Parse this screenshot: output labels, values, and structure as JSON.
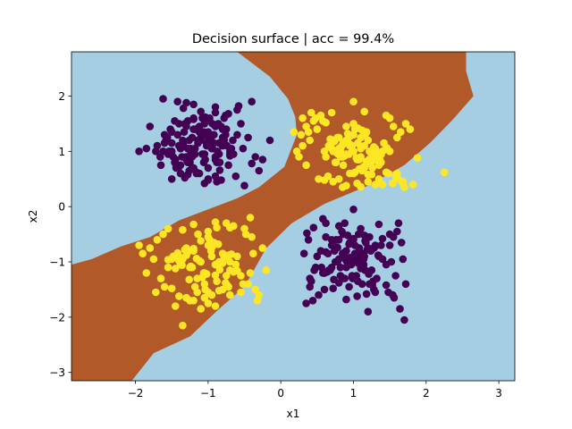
{
  "chart_data": {
    "type": "scatter",
    "title": "Decision surface | acc = 99.4%",
    "xlabel": "x1",
    "ylabel": "x2",
    "xlim": [
      -2.88,
      3.22
    ],
    "ylim": [
      -3.15,
      2.8
    ],
    "x_ticks": [
      -2,
      -1,
      0,
      1,
      2,
      3
    ],
    "y_ticks": [
      -3,
      -2,
      -1,
      0,
      1,
      2
    ],
    "grid": false,
    "legend": "none",
    "region_colors": {
      "class_0": "#a6cee3",
      "class_1": "#b15928"
    },
    "point_colors": {
      "class_0": "#440154",
      "class_1": "#fde725"
    },
    "decision_region_class_1": [
      [
        -2.88,
        -1.05
      ],
      [
        -2.6,
        -0.95
      ],
      [
        -2.2,
        -0.72
      ],
      [
        -1.8,
        -0.55
      ],
      [
        -1.4,
        -0.25
      ],
      [
        -1.0,
        -0.05
      ],
      [
        -0.6,
        0.15
      ],
      [
        -0.3,
        0.35
      ],
      [
        0.05,
        0.72
      ],
      [
        0.22,
        1.3
      ],
      [
        0.2,
        1.62
      ],
      [
        0.1,
        1.95
      ],
      [
        -0.15,
        2.35
      ],
      [
        -0.6,
        2.8
      ],
      [
        2.55,
        2.8
      ],
      [
        2.55,
        2.45
      ],
      [
        2.65,
        2.0
      ],
      [
        2.35,
        1.55
      ],
      [
        2.05,
        1.15
      ],
      [
        1.7,
        0.75
      ],
      [
        1.2,
        0.38
      ],
      [
        0.6,
        0.05
      ],
      [
        0.15,
        -0.3
      ],
      [
        -0.2,
        -0.75
      ],
      [
        -0.5,
        -1.45
      ],
      [
        -0.85,
        -1.85
      ],
      [
        -1.25,
        -2.35
      ],
      [
        -1.75,
        -2.65
      ],
      [
        -2.05,
        -3.15
      ],
      [
        -2.88,
        -3.15
      ]
    ],
    "series": [
      {
        "class": 0,
        "x": [
          -1.35,
          -1.12,
          -0.95,
          -0.8,
          -1.55,
          -1.25,
          -1.05,
          -0.7,
          -1.42,
          -1.18,
          -0.9,
          -1.6,
          -1.3,
          -1.0,
          -0.75,
          -1.45,
          -1.2,
          -0.98,
          -0.85,
          -1.38,
          -1.1,
          -0.6,
          -1.65,
          -1.28,
          -0.92,
          -1.5,
          -1.15,
          -0.88,
          -1.22,
          -1.02,
          -0.68,
          -1.48,
          -1.33,
          -1.08,
          -0.82,
          -1.58,
          -1.26,
          -0.96,
          -0.72,
          -1.4,
          -1.14,
          -0.9,
          -1.62,
          -1.36,
          -1.05,
          -0.78,
          -1.52,
          -1.2,
          -0.95,
          -1.3,
          -1.1,
          -0.85,
          -1.44,
          -1.24,
          -1.0,
          -0.65,
          -1.7,
          -1.32,
          -1.06,
          -0.8,
          -1.16,
          -0.92,
          -1.56,
          -1.28,
          -1.04,
          -0.74,
          -1.46,
          -1.22,
          -0.98,
          -1.38,
          -1.12,
          -0.87,
          -1.66,
          -1.34,
          -1.0,
          -0.76,
          -1.5,
          -1.18,
          -0.94,
          -1.26,
          -1.08,
          -0.84,
          -1.4,
          -1.2,
          -0.96,
          -1.54,
          -1.3,
          -1.02,
          -0.7,
          -1.6,
          -1.24,
          -0.9,
          -1.44,
          -1.14,
          -0.8,
          -1.36,
          -1.06,
          -0.86,
          -1.5,
          -1.28,
          -0.66,
          -1.8,
          -0.52,
          -0.35,
          -0.15,
          -1.72,
          -0.4,
          -0.3,
          -1.85,
          -0.55,
          -1.5,
          -0.9,
          -1.2,
          -0.6,
          -0.45,
          -1.95,
          -0.25,
          -0.5,
          -1.05,
          -0.78,
          -1.38,
          -0.58,
          -0.4,
          -1.62,
          -0.9,
          -1.1,
          -0.62,
          -1.3,
          -1.0,
          -0.72,
          -1.42,
          -1.16,
          -0.88,
          -1.28,
          -1.04,
          -0.82,
          -1.34,
          -1.12,
          -0.94,
          -1.22,
          -0.98,
          -0.76,
          -1.46,
          -1.18,
          -0.9,
          -1.32,
          -1.08,
          -0.84,
          -1.4,
          -1.2,
          -1.0,
          -0.7,
          0.85,
          1.05,
          1.2,
          0.7,
          0.95,
          1.15,
          0.6,
          0.9,
          1.1,
          1.3,
          0.8,
          1.0,
          1.25,
          0.65,
          0.88,
          1.08,
          1.35,
          0.75,
          0.98,
          1.18,
          0.55,
          0.82,
          1.02,
          1.22,
          1.4,
          0.7,
          0.92,
          1.12,
          0.6,
          0.86,
          1.06,
          1.28,
          0.78,
          0.96,
          1.16,
          0.5,
          0.84,
          1.04,
          1.24,
          1.45,
          0.72,
          0.94,
          1.14,
          0.62,
          0.9,
          1.1,
          1.32,
          0.8,
          1.0,
          1.2,
          0.58,
          0.87,
          1.07,
          1.27,
          0.74,
          0.97,
          1.17,
          0.66,
          0.92,
          1.12,
          1.38,
          0.82,
          1.02,
          1.22,
          0.56,
          0.88,
          1.08,
          0.76,
          0.99,
          1.19,
          0.68,
          0.94,
          1.14,
          1.34,
          0.8,
          1.0,
          1.21,
          0.62,
          0.9,
          1.1,
          1.3,
          0.73,
          0.96,
          1.16,
          0.64,
          0.86,
          1.06,
          1.26,
          0.78,
          1.0,
          0.45,
          0.38,
          0.32,
          0.48,
          0.42,
          0.52,
          0.4,
          1.55,
          1.62,
          1.5,
          1.68,
          1.58,
          1.48,
          1.72,
          1.6,
          1.52,
          1.66,
          0.35,
          0.4,
          0.46,
          0.36,
          0.44,
          1.56,
          1.64,
          1.5,
          1.7,
          1.54,
          0.85,
          0.6,
          1.3,
          0.8,
          1.1,
          1.35,
          0.72,
          1.05,
          0.92,
          1.45,
          0.7,
          0.98,
          0.62,
          1.2,
          0.58,
          0.88,
          0.9,
          1.28,
          1.15,
          1.4,
          1.0,
          1.18,
          1.0
        ],
        "y": [
          1.2,
          1.35,
          1.1,
          1.25,
          0.95,
          0.8,
          1.5,
          1.0,
          1.3,
          1.05,
          0.9,
          1.15,
          1.45,
          1.25,
          1.4,
          0.85,
          0.7,
          1.6,
          0.95,
          1.05,
          1.2,
          1.3,
          0.75,
          1.55,
          1.15,
          1.0,
          1.4,
          0.8,
          1.25,
          1.1,
          1.05,
          0.9,
          1.35,
          0.95,
          1.45,
          1.2,
          0.65,
          1.3,
          0.75,
          1.5,
          1.15,
          0.85,
          1.0,
          1.1,
          0.95,
          1.2,
          1.4,
          1.6,
          1.05,
          0.9,
          1.25,
          1.15,
          0.7,
          1.0,
          1.35,
          0.95,
          1.1,
          1.5,
          0.8,
          1.4,
          0.6,
          1.3,
          1.25,
          1.05,
          0.85,
          1.1,
          1.55,
          0.9,
          1.2,
          0.75,
          1.45,
          1.0,
          0.9,
          1.15,
          0.7,
          1.3,
          1.35,
          0.95,
          1.05,
          1.2,
          1.6,
          0.8,
          1.1,
          1.4,
          1.25,
          1.0,
          0.85,
          1.15,
          0.95,
          1.3,
          1.05,
          1.45,
          0.75,
          1.2,
          1.1,
          0.9,
          1.35,
          1.5,
          1.15,
          0.8,
          1.2,
          1.45,
          1.05,
          0.9,
          1.2,
          1.0,
          0.78,
          0.65,
          1.05,
          1.5,
          0.5,
          0.55,
          1.85,
          1.75,
          1.25,
          1.0,
          0.85,
          0.38,
          0.42,
          1.6,
          0.6,
          1.82,
          1.9,
          1.95,
          1.7,
          1.72,
          0.55,
          1.88,
          0.5,
          1.68,
          1.9,
          0.62,
          0.45,
          0.58,
          1.62,
          0.48,
          1.78,
          0.6,
          1.5,
          0.7,
          1.55,
          1.65,
          0.8,
          1.4,
          1.8,
          0.52,
          1.3,
          0.66,
          0.72,
          1.58,
          0.48,
          0.92,
          -0.85,
          -0.95,
          -0.75,
          -1.1,
          -0.65,
          -0.9,
          -1.2,
          -0.8,
          -1.05,
          -0.7,
          -0.95,
          -0.6,
          -1.15,
          -0.85,
          -1.3,
          -0.75,
          -0.9,
          -1.0,
          -1.25,
          -0.55,
          -0.8,
          -1.1,
          -0.7,
          -1.4,
          -0.95,
          -0.6,
          -1.05,
          -0.85,
          -1.2,
          -0.5,
          -1.35,
          -0.75,
          -1.0,
          -0.65,
          -1.15,
          -0.9,
          -0.45,
          -1.25,
          -0.8,
          -1.05,
          -0.7,
          -1.45,
          -0.95,
          -0.55,
          -1.1,
          -0.85,
          -1.3,
          -0.6,
          -1.0,
          -0.75,
          -1.2,
          -0.9,
          -0.5,
          -1.35,
          -0.8,
          -1.05,
          -0.65,
          -1.15,
          -0.95,
          -1.4,
          -0.7,
          -1.25,
          -0.85,
          -0.55,
          -1.1,
          -0.9,
          -1.0,
          -0.6,
          -1.3,
          -0.78,
          -1.15,
          -0.68,
          -1.05,
          -0.88,
          -1.38,
          -0.58,
          -1.22,
          -0.82,
          -0.98,
          -1.12,
          -0.72,
          -1.32,
          -0.92,
          -0.62,
          -1.18,
          -0.84,
          -1.02,
          -1.42,
          -0.74,
          -0.96,
          -0.38,
          -0.6,
          -0.85,
          -1.1,
          -1.35,
          -1.6,
          -1.45,
          -0.55,
          -0.3,
          -0.7,
          -0.95,
          -1.25,
          -1.55,
          -1.4,
          -0.45,
          -1.0,
          -0.65,
          -1.75,
          -1.3,
          -1.15,
          -0.48,
          -1.7,
          -1.65,
          -1.85,
          -0.5,
          -2.05,
          -1.6,
          -1.3,
          -1.5,
          -1.55,
          -0.35,
          -0.4,
          -0.32,
          -1.48,
          -1.62,
          -0.52,
          -1.42,
          -0.7,
          -1.28,
          -0.3,
          -1.9,
          -0.22,
          -0.3,
          -1.68,
          -1.5,
          -0.52,
          -0.58,
          -0.98,
          -1.58,
          -0.05
        ]
      },
      {
        "class": 1,
        "x": [
          1.0,
          1.15,
          0.85,
          1.3,
          0.7,
          1.05,
          1.2,
          0.9,
          1.4,
          0.75,
          1.1,
          0.95,
          1.25,
          0.8,
          1.35,
          0.6,
          1.0,
          1.15,
          0.88,
          1.28,
          0.72,
          1.08,
          1.45,
          0.82,
          1.18,
          0.98,
          1.38,
          0.66,
          1.12,
          0.92,
          1.22,
          0.78,
          1.32,
          1.02,
          0.86,
          1.5,
          0.7,
          1.06,
          1.26,
          0.94,
          1.16,
          0.84,
          1.36,
          0.62,
          1.0,
          1.2,
          0.9,
          1.3,
          0.76,
          1.1,
          1.42,
          0.8,
          1.04,
          1.24,
          0.96,
          1.14,
          0.74,
          1.34,
          1.0,
          0.88,
          1.18,
          1.28,
          0.68,
          1.08,
          0.92,
          1.38,
          0.82,
          1.12,
          1.02,
          1.22,
          0.78,
          1.46,
          0.96,
          1.16,
          0.86,
          1.26,
          1.06,
          0.72,
          1.32,
          0.98,
          1.2,
          0.9,
          1.1,
          1.0,
          0.45,
          0.55,
          0.35,
          0.28,
          0.42,
          0.5,
          0.3,
          0.62,
          0.4,
          1.55,
          1.65,
          1.72,
          1.6,
          1.5,
          1.78,
          1.58,
          1.68,
          1.48,
          1.62,
          0.48,
          0.38,
          0.58,
          0.25,
          0.22,
          1.82,
          1.7,
          1.54,
          0.35,
          0.52,
          1.2,
          0.9,
          1.4,
          0.8,
          1.05,
          1.35,
          0.72,
          1.25,
          1.1,
          0.95,
          0.65,
          1.45,
          0.6,
          0.85,
          1.3,
          0.7,
          1.15,
          1.0,
          2.25,
          1.68,
          0.18,
          0.3,
          1.88,
          1.45,
          1.6,
          -1.1,
          -0.95,
          -1.25,
          -0.8,
          -1.35,
          -1.05,
          -0.9,
          -1.2,
          -0.7,
          -1.4,
          -1.0,
          -1.15,
          -0.85,
          -1.3,
          -0.75,
          -1.5,
          -1.05,
          -0.92,
          -1.22,
          -0.78,
          -1.38,
          -1.0,
          -0.65,
          -1.28,
          -0.88,
          -1.12,
          -0.72,
          -1.45,
          -0.98,
          -1.18,
          -0.82,
          -1.32,
          -1.02,
          -0.68,
          -1.55,
          -1.08,
          -0.94,
          -1.24,
          -0.76,
          -1.42,
          -1.04,
          -0.86,
          -1.16,
          -0.6,
          -1.36,
          -0.96,
          -1.26,
          -0.8,
          -1.48,
          -1.1,
          -0.9,
          -1.2,
          -0.74,
          -1.4,
          -1.0,
          -1.14,
          -0.84,
          -1.3,
          -1.06,
          -0.7,
          -1.7,
          -1.8,
          -1.55,
          -1.65,
          -1.75,
          -1.9,
          -1.6,
          -1.85,
          -0.45,
          -0.55,
          -0.4,
          -0.35,
          -0.5,
          -0.3,
          -0.6,
          -0.42,
          -0.25,
          -0.2,
          -0.48,
          -0.38,
          -0.62,
          -1.95,
          -1.62,
          -1.72,
          -0.52,
          -0.32,
          -1.45,
          -0.55,
          -1.3,
          -0.7,
          -1.0,
          -1.2,
          -0.85,
          -1.1,
          -0.95,
          -1.4,
          -0.8,
          -1.05,
          -1.25,
          -0.9,
          -1.15,
          -0.65,
          -1.35,
          -0.75,
          -1.55,
          -1.0,
          -0.88,
          -1.2,
          -1.5,
          -0.72,
          -1.35,
          -0.42,
          -0.7,
          -0.9
        ],
        "y": [
          1.0,
          1.1,
          0.9,
          1.05,
          1.15,
          0.85,
          1.2,
          0.95,
          1.0,
          0.8,
          1.25,
          1.1,
          0.9,
          1.05,
          0.75,
          1.0,
          1.3,
          0.7,
          1.15,
          0.95,
          1.2,
          0.85,
          1.05,
          0.9,
          1.35,
          1.0,
          0.8,
          1.1,
          0.65,
          1.2,
          1.0,
          1.25,
          0.9,
          1.4,
          0.75,
          1.0,
          1.05,
          1.15,
          0.7,
          0.95,
          1.3,
          1.1,
          0.85,
          0.9,
          0.6,
          1.2,
          1.45,
          1.0,
          0.8,
          1.05,
          1.15,
          1.25,
          0.88,
          0.78,
          1.12,
          0.72,
          1.18,
          0.98,
          1.5,
          0.92,
          0.82,
          1.08,
          1.22,
          0.68,
          1.32,
          0.94,
          1.02,
          1.38,
          0.62,
          0.86,
          0.96,
          1.06,
          1.28,
          0.74,
          1.16,
          0.88,
          1.42,
          1.0,
          0.84,
          1.1,
          0.58,
          1.2,
          0.9,
          1.0,
          1.55,
          1.65,
          1.45,
          1.3,
          1.7,
          1.4,
          1.6,
          1.52,
          1.2,
          1.45,
          1.35,
          1.5,
          1.25,
          1.6,
          1.4,
          0.55,
          0.45,
          0.6,
          0.5,
          1.6,
          1.35,
          1.55,
          0.9,
          1.0,
          0.4,
          0.35,
          0.42,
          0.75,
          0.5,
          0.45,
          0.38,
          0.4,
          0.5,
          0.42,
          0.5,
          0.45,
          0.58,
          0.36,
          0.6,
          0.55,
          0.62,
          0.48,
          0.35,
          0.4,
          1.7,
          1.72,
          1.9,
          0.62,
          0.42,
          1.35,
          1.1,
          0.88,
          1.65,
          0.6,
          -1.0,
          -0.9,
          -1.1,
          -0.85,
          -0.95,
          -1.2,
          -1.05,
          -0.8,
          -1.15,
          -0.9,
          -0.7,
          -1.3,
          -1.0,
          -0.75,
          -1.25,
          -0.95,
          -1.4,
          -0.65,
          -1.1,
          -0.92,
          -1.05,
          -0.55,
          -1.18,
          -0.82,
          -1.35,
          -0.98,
          -0.88,
          -1.12,
          -0.6,
          -1.45,
          -1.02,
          -0.78,
          -1.22,
          -0.86,
          -0.96,
          -1.28,
          -0.72,
          -1.08,
          -1.38,
          -0.84,
          -1.5,
          -0.68,
          -0.94,
          -1.16,
          -1.06,
          -0.8,
          -1.32,
          -1.02,
          -0.9,
          -0.62,
          -1.24,
          -0.76,
          -1.42,
          -0.98,
          -1.55,
          -0.5,
          -1.14,
          -0.88,
          -1.2,
          -1.0,
          -0.6,
          -0.75,
          -1.1,
          -1.3,
          -0.95,
          -0.85,
          -1.45,
          -1.2,
          -1.4,
          -1.25,
          -0.55,
          -1.5,
          -0.4,
          -1.6,
          -0.9,
          -1.2,
          -0.75,
          -1.15,
          -0.5,
          -0.85,
          -1.05,
          -0.7,
          -0.5,
          -1.55,
          -1.4,
          -1.7,
          -1.8,
          -1.55,
          -1.65,
          -1.6,
          -1.75,
          -1.7,
          -1.52,
          -1.85,
          -1.6,
          -1.62,
          -1.5,
          -1.65,
          -1.7,
          -1.8,
          -1.55,
          -0.35,
          -0.42,
          -0.3,
          -0.4,
          -0.45,
          -0.38,
          -0.32,
          -1.48,
          -1.45,
          -2.15,
          -0.2,
          -0.38,
          -0.28
        ]
      }
    ]
  }
}
